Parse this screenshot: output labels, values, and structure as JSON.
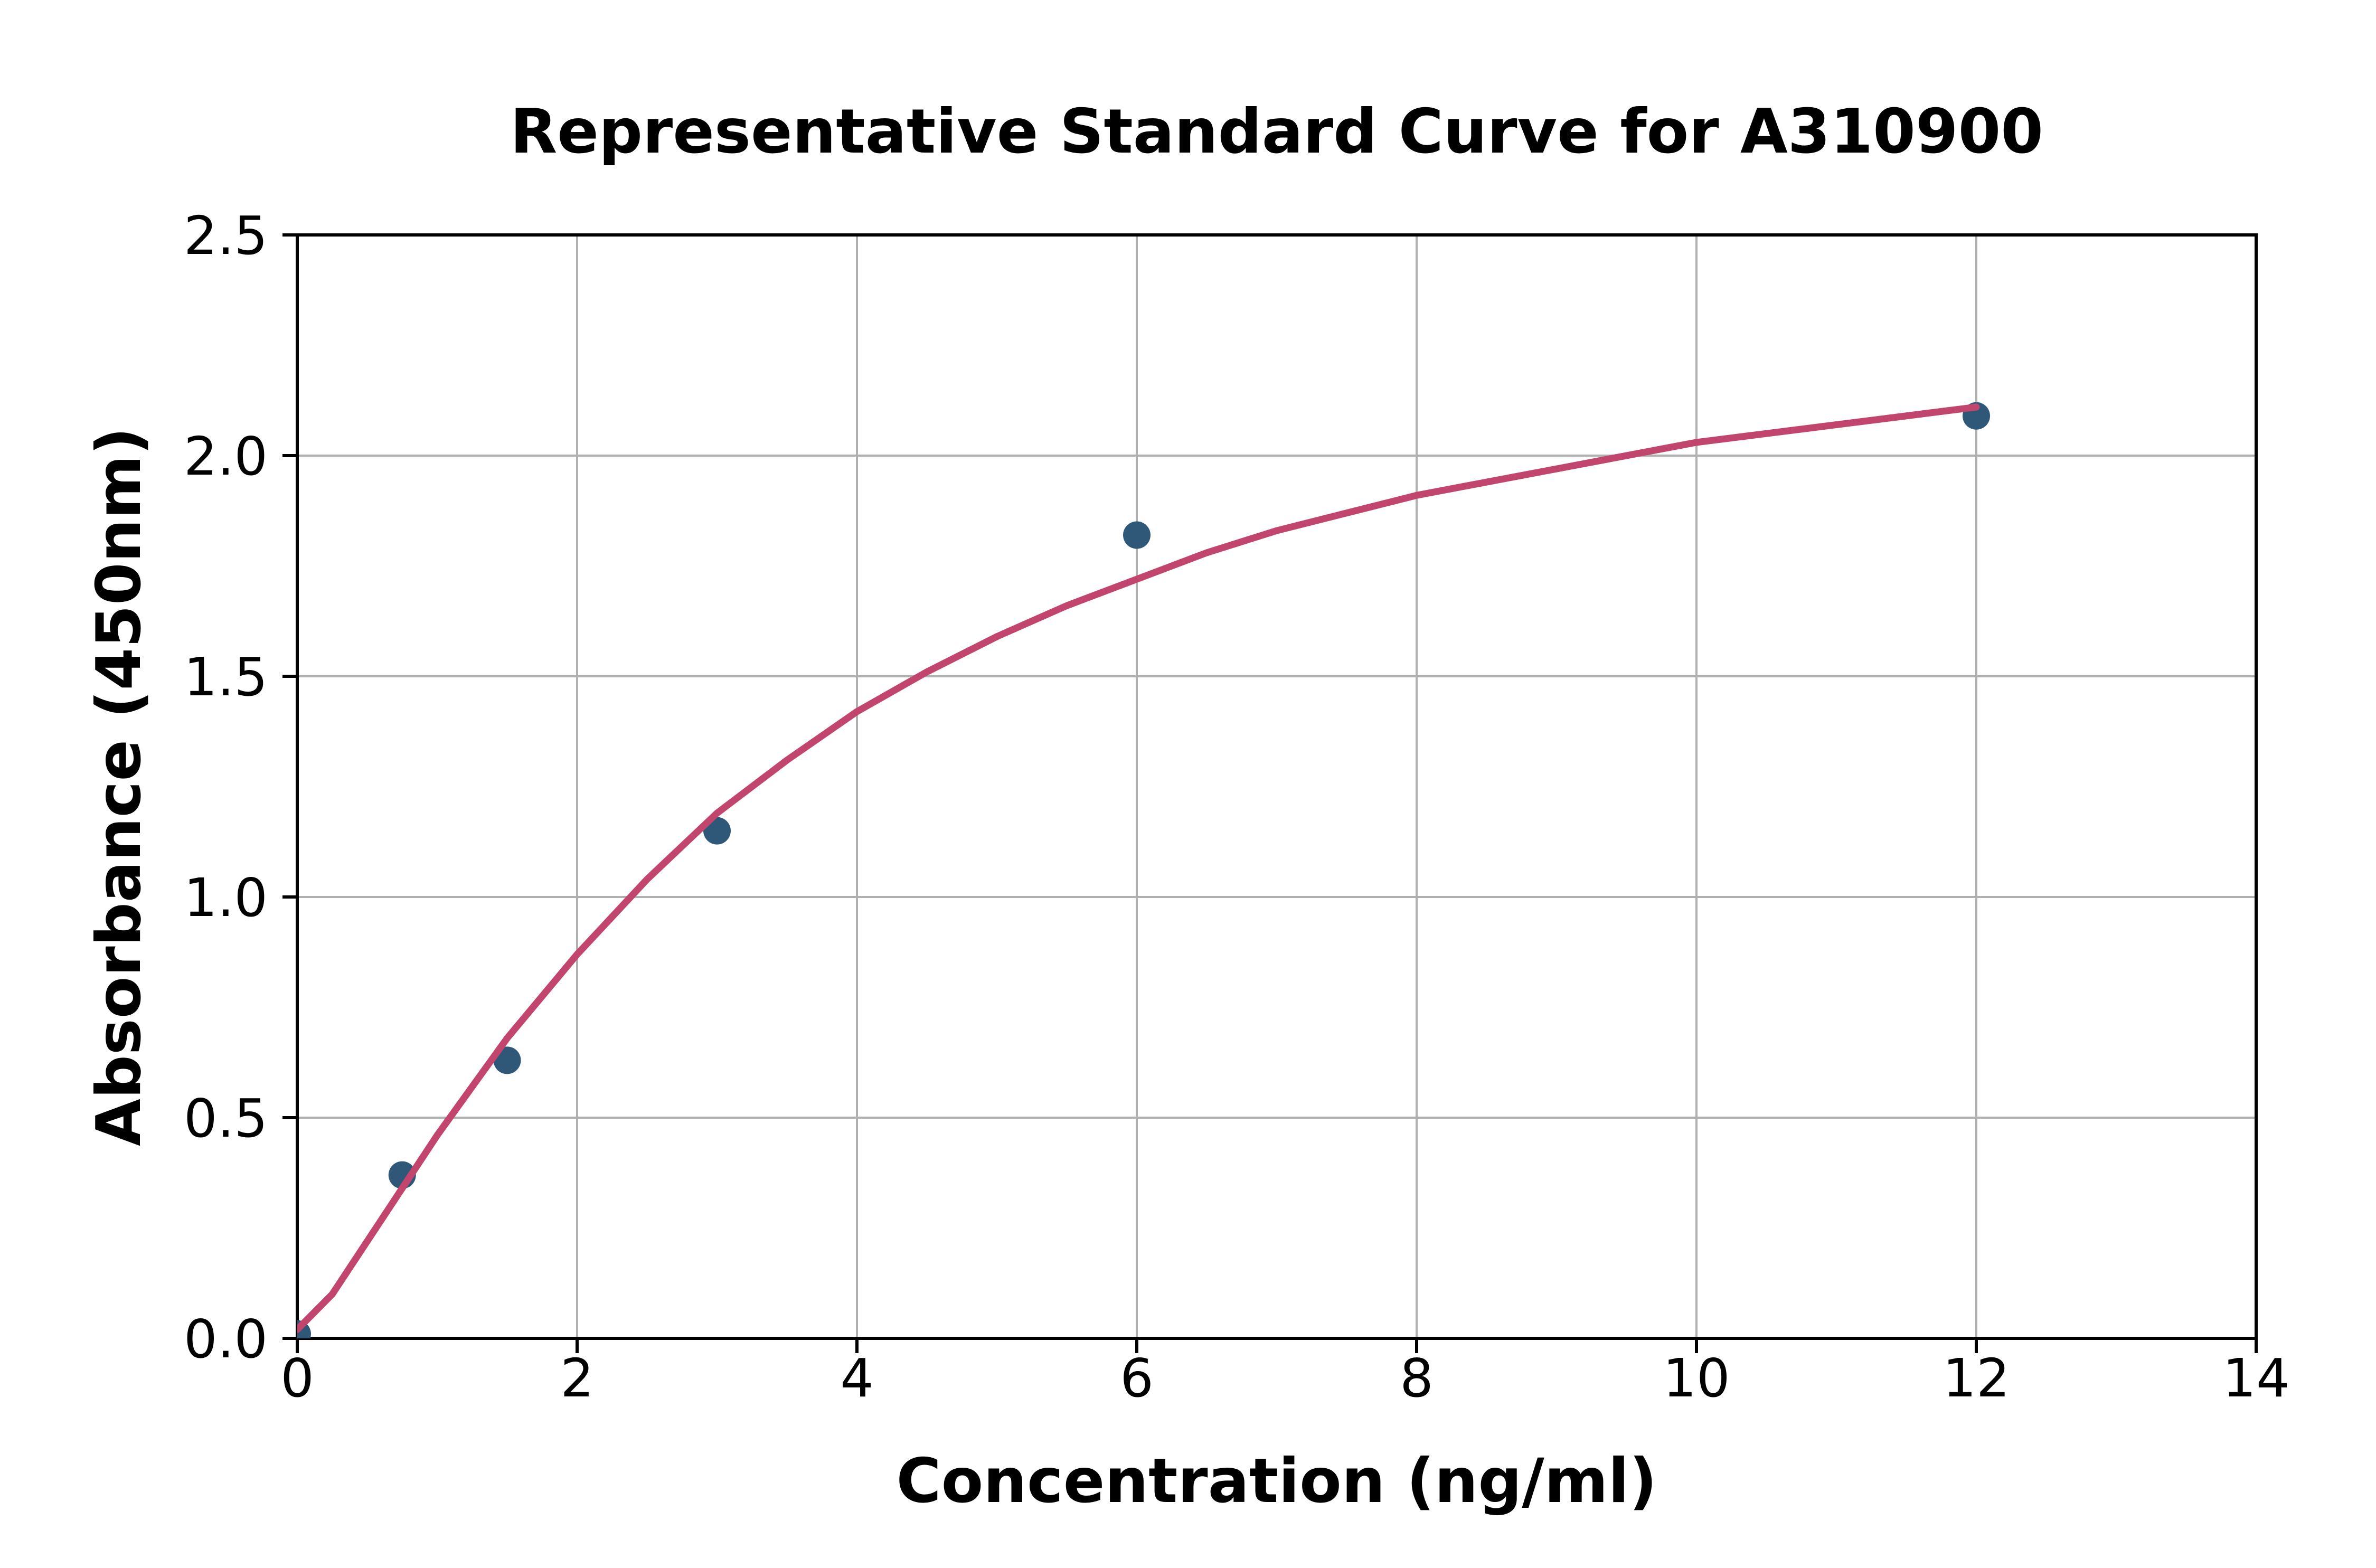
{
  "page": {
    "background_color": "#ffffff"
  },
  "chart_data": {
    "type": "scatter",
    "title": "Representative Standard Curve for A310900",
    "xlabel": "Concentration (ng/ml)",
    "ylabel": "Absorbance (450nm)",
    "xlim": [
      0,
      14
    ],
    "ylim": [
      0.0,
      2.5
    ],
    "x_ticks": [
      0,
      2,
      4,
      6,
      8,
      10,
      12,
      14
    ],
    "x_tick_labels": [
      "0",
      "2",
      "4",
      "6",
      "8",
      "10",
      "12",
      "14"
    ],
    "y_ticks": [
      0.0,
      0.5,
      1.0,
      1.5,
      2.0,
      2.5
    ],
    "y_tick_labels": [
      "0.0",
      "0.5",
      "1.0",
      "1.5",
      "2.0",
      "2.5"
    ],
    "grid": true,
    "legend_position": "none",
    "colors": {
      "grid": "#b0b0b0",
      "axis": "#000000",
      "text": "#000000",
      "point": "#2f5878",
      "curve": "#c2456e"
    },
    "series": [
      {
        "name": "standard-points",
        "type": "scatter",
        "color": "#2f5878",
        "marker_radius_px": 26,
        "points": [
          {
            "x": 0,
            "y": 0.01
          },
          {
            "x": 0.75,
            "y": 0.37
          },
          {
            "x": 1.5,
            "y": 0.63
          },
          {
            "x": 3,
            "y": 1.15
          },
          {
            "x": 6,
            "y": 1.82
          },
          {
            "x": 12,
            "y": 2.09
          }
        ]
      },
      {
        "name": "fitted-curve",
        "type": "line",
        "color": "#c2456e",
        "stroke_width_px": 13,
        "points": [
          [
            0,
            0.02
          ],
          [
            0.25,
            0.1
          ],
          [
            0.5,
            0.22
          ],
          [
            0.75,
            0.34
          ],
          [
            1,
            0.46
          ],
          [
            1.25,
            0.57
          ],
          [
            1.5,
            0.68
          ],
          [
            2,
            0.87
          ],
          [
            2.5,
            1.04
          ],
          [
            3,
            1.19
          ],
          [
            3.5,
            1.31
          ],
          [
            4,
            1.42
          ],
          [
            4.5,
            1.51
          ],
          [
            5,
            1.59
          ],
          [
            5.5,
            1.66
          ],
          [
            6,
            1.72
          ],
          [
            6.5,
            1.78
          ],
          [
            7,
            1.83
          ],
          [
            7.5,
            1.87
          ],
          [
            8,
            1.91
          ],
          [
            8.5,
            1.94
          ],
          [
            9,
            1.97
          ],
          [
            9.5,
            2.0
          ],
          [
            10,
            2.03
          ],
          [
            10.5,
            2.05
          ],
          [
            11,
            2.07
          ],
          [
            11.5,
            2.09
          ],
          [
            12,
            2.11
          ]
        ]
      }
    ]
  }
}
